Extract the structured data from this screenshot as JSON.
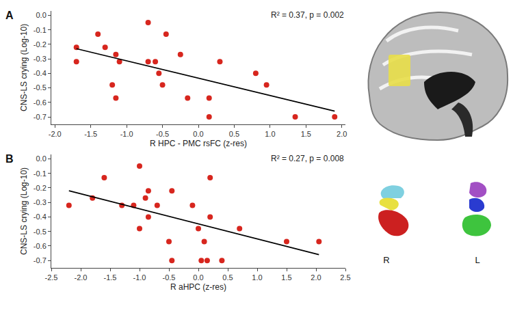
{
  "chart_data": [
    {
      "type": "scatter",
      "title": "A",
      "annotations": [
        "R² = 0.37, p = 0.002"
      ],
      "x_label": "R HPC - PMC rsFC (z-res)",
      "y_label": "CNS-LS crying (Log-10)",
      "series": [
        {
          "type": "scatter",
          "marker": "circle",
          "color": "#d7261e",
          "x": [
            -1.7,
            -1.7,
            -1.4,
            -1.3,
            -1.2,
            -1.15,
            -1.15,
            -1.1,
            -0.7,
            -0.7,
            -0.6,
            -0.55,
            -0.5,
            -0.45,
            -0.25,
            -0.15,
            0.15,
            0.15,
            0.3,
            0.8,
            0.95,
            1.35,
            1.9
          ],
          "values": [
            -0.22,
            -0.32,
            -0.13,
            -0.22,
            -0.48,
            -0.27,
            -0.57,
            -0.32,
            -0.05,
            -0.32,
            -0.32,
            -0.4,
            -0.48,
            -0.13,
            -0.27,
            -0.57,
            -0.57,
            -0.7,
            -0.32,
            -0.4,
            -0.48,
            -0.7,
            -0.7
          ]
        },
        {
          "type": "line",
          "line_style": "solid",
          "color": "#000000",
          "x": [
            -1.7,
            1.9
          ],
          "values": [
            -0.23,
            -0.66
          ]
        }
      ],
      "xlim": [
        -2.05,
        2.05
      ],
      "xticks": [
        {
          "value": -2,
          "label": "-2.0"
        },
        {
          "value": -1.5,
          "label": "-1.5"
        },
        {
          "value": -1,
          "label": "-1.0"
        },
        {
          "value": -0.5,
          "label": "-0.5"
        },
        {
          "value": 0,
          "label": "0.0"
        },
        {
          "value": 0.5,
          "label": "0.5"
        },
        {
          "value": 1,
          "label": "1.0"
        },
        {
          "value": 1.5,
          "label": "1.5"
        },
        {
          "value": 2,
          "label": "2.0"
        }
      ],
      "ylim": [
        -0.75,
        0.03
      ],
      "yticks": [
        {
          "value": 0,
          "label": "0.0"
        },
        -0.1,
        -0.2,
        -0.3,
        -0.4,
        -0.5,
        -0.6,
        -0.7
      ],
      "grid": false
    },
    {
      "type": "scatter",
      "title": "B",
      "annotations": [
        "R² = 0.27, p = 0.008"
      ],
      "x_label": "R aHPC (z-res)",
      "y_label": "CNS-LS crying (Log-10)",
      "series": [
        {
          "type": "scatter",
          "marker": "circle",
          "color": "#d7261e",
          "x": [
            -2.2,
            -1.8,
            -1.6,
            -1.3,
            -1.1,
            -1.0,
            -1.0,
            -0.9,
            -0.85,
            -0.85,
            -0.7,
            -0.45,
            -0.5,
            -0.45,
            -0.1,
            0.0,
            0.05,
            0.1,
            0.15,
            0.2,
            0.2,
            0.4,
            0.7,
            1.5,
            2.05
          ],
          "values": [
            -0.32,
            -0.27,
            -0.13,
            -0.32,
            -0.32,
            -0.05,
            -0.48,
            -0.27,
            -0.4,
            -0.22,
            -0.32,
            -0.22,
            -0.57,
            -0.7,
            -0.32,
            -0.48,
            -0.7,
            -0.57,
            -0.7,
            -0.13,
            -0.4,
            -0.7,
            -0.48,
            -0.57,
            -0.57
          ]
        },
        {
          "type": "line",
          "line_style": "solid",
          "color": "#000000",
          "x": [
            -2.2,
            2.05
          ],
          "values": [
            -0.22,
            -0.66
          ]
        }
      ],
      "xlim": [
        -2.5,
        2.5
      ],
      "xticks": [
        {
          "value": -2.5,
          "label": "-2.5"
        },
        {
          "value": -2,
          "label": "-2.0"
        },
        {
          "value": -1.5,
          "label": "-1.5"
        },
        {
          "value": -1,
          "label": "-1.0"
        },
        {
          "value": -0.5,
          "label": "-0.5"
        },
        {
          "value": 0,
          "label": "0.0"
        },
        {
          "value": 0.5,
          "label": "0.5"
        },
        {
          "value": 1,
          "label": "1.0"
        },
        {
          "value": 1.5,
          "label": "1.5"
        },
        {
          "value": 2,
          "label": "2.0"
        },
        {
          "value": 2.5,
          "label": "2.5"
        }
      ],
      "ylim": [
        -0.75,
        0.03
      ],
      "yticks": [
        {
          "value": 0,
          "label": "0.0"
        },
        -0.1,
        -0.2,
        -0.3,
        -0.4,
        -0.5,
        -0.6,
        -0.7
      ],
      "grid": false
    }
  ],
  "inset_labels": [
    "R",
    "L"
  ]
}
